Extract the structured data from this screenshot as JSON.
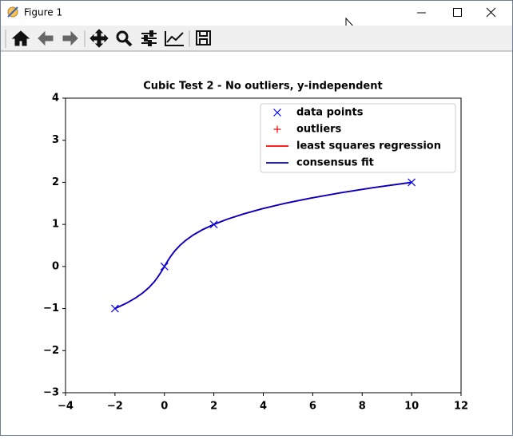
{
  "window": {
    "title": "Figure 1"
  },
  "chart_data": {
    "type": "line",
    "title": "Cubic Test 2 - No outliers, y-independent",
    "xlim": [
      -4,
      12
    ],
    "ylim": [
      -3,
      4
    ],
    "xticks": [
      {
        "value": -4,
        "label": "−4"
      },
      {
        "value": -2,
        "label": "−2"
      },
      0,
      2,
      4,
      6,
      8,
      10,
      12
    ],
    "yticks": [
      {
        "value": -3,
        "label": "−3"
      },
      {
        "value": -2,
        "label": "−2"
      },
      {
        "value": -1,
        "label": "−1"
      },
      0,
      1,
      2,
      3,
      4
    ],
    "legend": "upper right",
    "series": [
      {
        "name": "data points",
        "color": "#0000ff",
        "marker": "x",
        "x": [
          -2,
          0,
          2,
          10
        ],
        "values": [
          -1,
          0,
          1,
          2
        ]
      },
      {
        "name": "outliers",
        "color": "#ff0000",
        "marker": "+",
        "x": [],
        "values": []
      },
      {
        "name": "least squares regression",
        "color": "#ff0000",
        "x": [
          -2,
          -1.544921875,
          -1.171875,
          -0.869140625,
          -0.625,
          -0.427734375,
          -0.265625,
          -0.126953125,
          0,
          0.126953125,
          0.265625,
          0.427734375,
          0.625,
          0.869140625,
          1.171875,
          1.544921875,
          2,
          2.548828125,
          3.203125,
          3.974609375,
          4.875,
          5.916015625,
          7.109375,
          8.466796875,
          10
        ],
        "values": [
          -1,
          -0.875,
          -0.75,
          -0.625,
          -0.5,
          -0.375,
          -0.25,
          -0.125,
          0,
          0.125,
          0.25,
          0.375,
          0.5,
          0.625,
          0.75,
          0.875,
          1,
          1.125,
          1.25,
          1.375,
          1.5,
          1.625,
          1.75,
          1.875,
          2
        ]
      },
      {
        "name": "consensus fit",
        "color": "#0000cc",
        "x": [
          -2,
          -1.544921875,
          -1.171875,
          -0.869140625,
          -0.625,
          -0.427734375,
          -0.265625,
          -0.126953125,
          0,
          0.126953125,
          0.265625,
          0.427734375,
          0.625,
          0.869140625,
          1.171875,
          1.544921875,
          2,
          2.548828125,
          3.203125,
          3.974609375,
          4.875,
          5.916015625,
          7.109375,
          8.466796875,
          10
        ],
        "values": [
          -1,
          -0.875,
          -0.75,
          -0.625,
          -0.5,
          -0.375,
          -0.25,
          -0.125,
          0,
          0.125,
          0.25,
          0.375,
          0.5,
          0.625,
          0.75,
          0.875,
          1,
          1.125,
          1.25,
          1.375,
          1.5,
          1.625,
          1.75,
          1.875,
          2
        ]
      }
    ]
  }
}
